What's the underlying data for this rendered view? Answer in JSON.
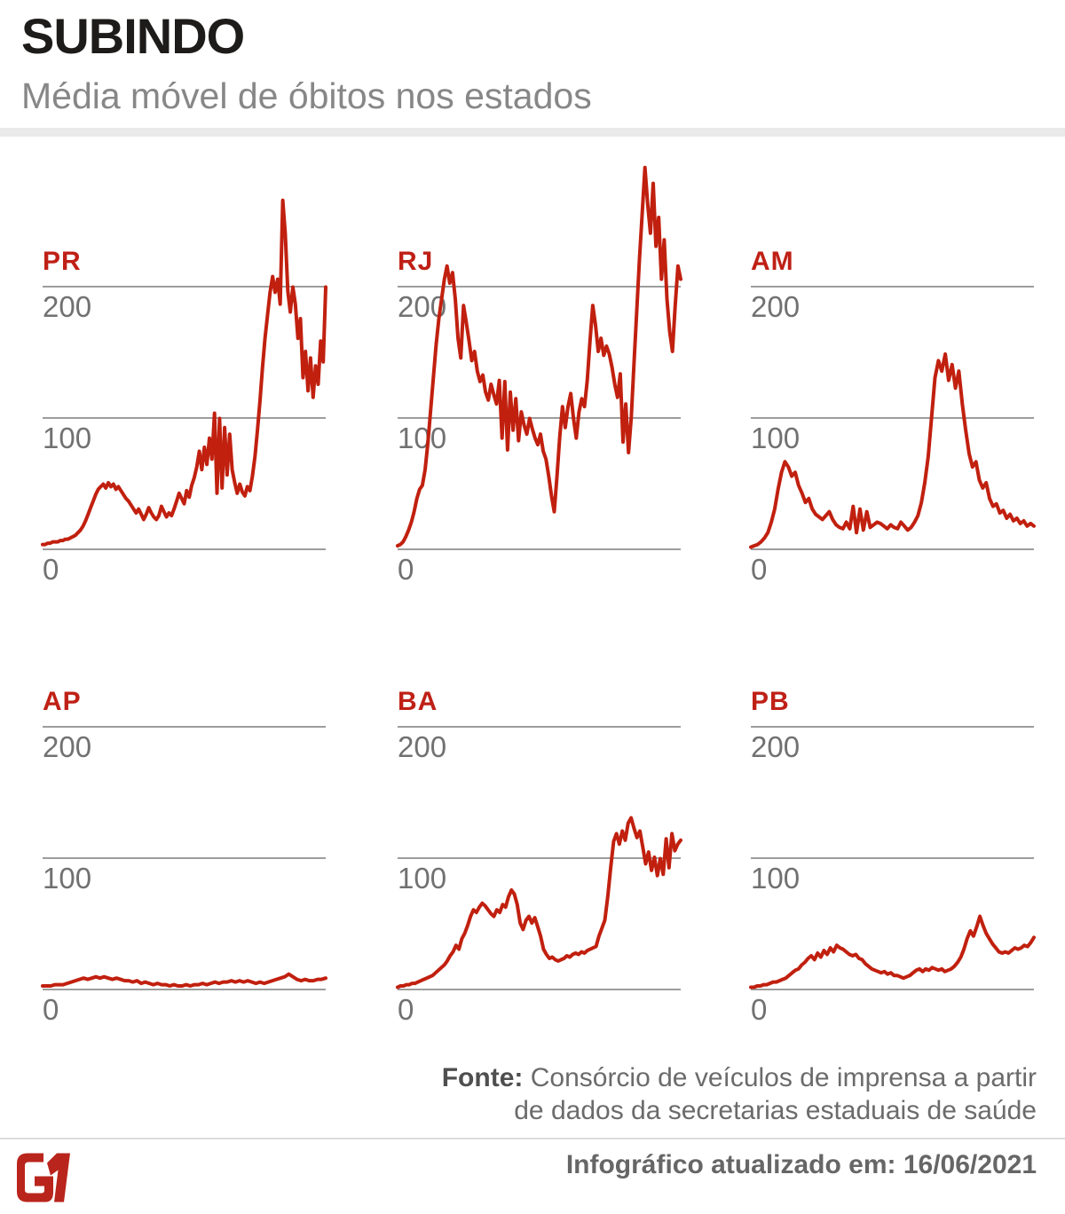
{
  "header": {
    "title": "SUBINDO",
    "subtitle": "Média móvel de óbitos nos estados"
  },
  "colors": {
    "line_red": "#c1200f",
    "label_red": "#bf2016",
    "logo_red": "#b9251c",
    "grid_gray": "#9d9d9d",
    "tick_gray": "#717171",
    "title_black": "#1d1c1a",
    "subtitle_gray": "#878787",
    "band_gray": "#eaeaea"
  },
  "footer": {
    "source_label": "Fonte:",
    "source_rest": "Consórcio de veículos de imprensa a partir",
    "source_line2": "de dados da secretarias estaduais de saúde",
    "updated": "Infográfico atualizado em: 16/06/2021",
    "logo": "G1"
  },
  "chart_data": [
    {
      "type": "line",
      "state": "PR",
      "title": "PR",
      "grid_position": {
        "row": 0,
        "col": 0
      },
      "yticks": [
        "200",
        "100",
        "0"
      ],
      "gridline_values": [
        200,
        100,
        0
      ],
      "ylim": [
        0,
        300
      ],
      "xlabel": "",
      "ylabel": "",
      "x_tick_labels": [],
      "legend": "none",
      "line_color": "#c1200f",
      "values": [
        3,
        3,
        4,
        4,
        5,
        5,
        5,
        6,
        6,
        7,
        7,
        8,
        9,
        10,
        12,
        14,
        17,
        21,
        26,
        31,
        36,
        41,
        45,
        47,
        49,
        46,
        50,
        47,
        49,
        45,
        47,
        44,
        41,
        38,
        36,
        33,
        30,
        27,
        30,
        26,
        22,
        26,
        31,
        27,
        24,
        22,
        25,
        32,
        28,
        24,
        27,
        25,
        30,
        36,
        42,
        38,
        34,
        44,
        39,
        48,
        54,
        62,
        74,
        60,
        77,
        64,
        84,
        68,
        103,
        42,
        99,
        46,
        92,
        56,
        87,
        60,
        50,
        42,
        49,
        43,
        40,
        47,
        44,
        55,
        70,
        90,
        112,
        138,
        160,
        178,
        195,
        207,
        195,
        205,
        186,
        265,
        240,
        196,
        180,
        199,
        186,
        160,
        175,
        130,
        150,
        120,
        145,
        115,
        139,
        125,
        158,
        142,
        199
      ]
    },
    {
      "type": "line",
      "state": "RJ",
      "title": "RJ",
      "grid_position": {
        "row": 0,
        "col": 1
      },
      "yticks": [
        "200",
        "100",
        "0"
      ],
      "gridline_values": [
        200,
        100,
        0
      ],
      "ylim": [
        0,
        300
      ],
      "xlabel": "",
      "ylabel": "",
      "x_tick_labels": [],
      "legend": "none",
      "line_color": "#c1200f",
      "values": [
        2,
        3,
        5,
        9,
        14,
        20,
        28,
        38,
        45,
        48,
        60,
        80,
        105,
        130,
        155,
        175,
        190,
        205,
        215,
        202,
        210,
        190,
        160,
        145,
        185,
        172,
        158,
        143,
        150,
        135,
        127,
        132,
        119,
        113,
        125,
        117,
        110,
        128,
        84,
        127,
        75,
        119,
        90,
        114,
        82,
        104,
        94,
        87,
        99,
        91,
        84,
        79,
        87,
        74,
        68,
        55,
        40,
        28,
        55,
        85,
        108,
        92,
        108,
        118,
        99,
        84,
        104,
        114,
        108,
        128,
        158,
        185,
        170,
        150,
        160,
        147,
        154,
        148,
        138,
        125,
        115,
        133,
        81,
        110,
        73,
        100,
        140,
        180,
        220,
        255,
        290,
        262,
        240,
        278,
        230,
        252,
        205,
        235,
        190,
        165,
        150,
        185,
        215,
        205
      ]
    },
    {
      "type": "line",
      "state": "AM",
      "title": "AM",
      "grid_position": {
        "row": 0,
        "col": 2
      },
      "yticks": [
        "200",
        "100",
        "0"
      ],
      "gridline_values": [
        200,
        100,
        0
      ],
      "ylim": [
        0,
        300
      ],
      "xlabel": "",
      "ylabel": "",
      "x_tick_labels": [],
      "legend": "none",
      "line_color": "#c1200f",
      "values": [
        1,
        2,
        3,
        5,
        8,
        12,
        20,
        30,
        45,
        58,
        66,
        62,
        55,
        58,
        48,
        42,
        35,
        38,
        30,
        26,
        24,
        22,
        25,
        28,
        22,
        18,
        16,
        15,
        20,
        15,
        32,
        12,
        30,
        14,
        28,
        16,
        18,
        20,
        19,
        17,
        15,
        18,
        16,
        15,
        20,
        17,
        14,
        16,
        20,
        25,
        35,
        50,
        70,
        100,
        130,
        143,
        135,
        148,
        128,
        140,
        122,
        135,
        110,
        90,
        72,
        62,
        66,
        52,
        46,
        50,
        38,
        32,
        34,
        27,
        29,
        23,
        26,
        21,
        23,
        19,
        21,
        17,
        19,
        17
      ]
    },
    {
      "type": "line",
      "state": "AP",
      "title": "AP",
      "grid_position": {
        "row": 1,
        "col": 0
      },
      "yticks": [
        "200",
        "100",
        "0"
      ],
      "gridline_values": [
        200,
        100,
        0
      ],
      "ylim": [
        0,
        300
      ],
      "xlabel": "",
      "ylabel": "",
      "x_tick_labels": [],
      "legend": "none",
      "line_color": "#c1200f",
      "values": [
        2,
        2,
        2,
        3,
        3,
        3,
        4,
        5,
        6,
        7,
        8,
        7,
        8,
        9,
        8,
        9,
        8,
        7,
        8,
        7,
        6,
        6,
        5,
        6,
        4,
        5,
        4,
        3,
        4,
        3,
        3,
        2,
        3,
        2,
        2,
        3,
        2,
        3,
        3,
        4,
        3,
        4,
        5,
        4,
        5,
        5,
        6,
        5,
        6,
        5,
        6,
        5,
        4,
        5,
        4,
        5,
        6,
        7,
        8,
        9,
        11,
        9,
        7,
        6,
        7,
        6,
        6,
        7,
        7,
        8
      ]
    },
    {
      "type": "line",
      "state": "BA",
      "title": "BA",
      "grid_position": {
        "row": 1,
        "col": 1
      },
      "yticks": [
        "200",
        "100",
        "0"
      ],
      "gridline_values": [
        200,
        100,
        0
      ],
      "ylim": [
        0,
        300
      ],
      "xlabel": "",
      "ylabel": "",
      "x_tick_labels": [],
      "legend": "none",
      "line_color": "#c1200f",
      "values": [
        1,
        2,
        2,
        3,
        3,
        4,
        4,
        5,
        6,
        7,
        8,
        9,
        10,
        12,
        14,
        16,
        18,
        21,
        25,
        28,
        33,
        30,
        38,
        42,
        48,
        55,
        60,
        58,
        62,
        65,
        63,
        60,
        57,
        55,
        60,
        58,
        64,
        62,
        70,
        75,
        72,
        64,
        50,
        45,
        52,
        55,
        50,
        54,
        47,
        40,
        30,
        26,
        23,
        24,
        22,
        21,
        22,
        23,
        25,
        24,
        26,
        27,
        26,
        28,
        27,
        29,
        30,
        31,
        32,
        40,
        46,
        52,
        70,
        92,
        112,
        118,
        110,
        120,
        113,
        126,
        130,
        122,
        115,
        120,
        108,
        95,
        104,
        90,
        100,
        86,
        99,
        87,
        114,
        92,
        118,
        105,
        110,
        113
      ]
    },
    {
      "type": "line",
      "state": "PB",
      "title": "PB",
      "grid_position": {
        "row": 1,
        "col": 2
      },
      "yticks": [
        "200",
        "100",
        "0"
      ],
      "gridline_values": [
        200,
        100,
        0
      ],
      "ylim": [
        0,
        300
      ],
      "xlabel": "",
      "ylabel": "",
      "x_tick_labels": [],
      "legend": "none",
      "line_color": "#c1200f",
      "values": [
        1,
        1,
        2,
        2,
        3,
        3,
        4,
        5,
        5,
        6,
        7,
        8,
        10,
        12,
        14,
        15,
        18,
        20,
        23,
        25,
        22,
        27,
        24,
        29,
        26,
        31,
        28,
        33,
        31,
        30,
        28,
        26,
        25,
        26,
        23,
        22,
        19,
        17,
        15,
        14,
        13,
        12,
        13,
        11,
        12,
        10,
        10,
        9,
        8,
        9,
        10,
        12,
        14,
        15,
        13,
        15,
        14,
        16,
        15,
        14,
        15,
        13,
        14,
        15,
        17,
        20,
        24,
        30,
        38,
        44,
        40,
        47,
        55,
        48,
        42,
        38,
        34,
        31,
        28,
        27,
        28,
        27,
        29,
        31,
        30,
        31,
        33,
        32,
        35,
        39
      ]
    }
  ]
}
